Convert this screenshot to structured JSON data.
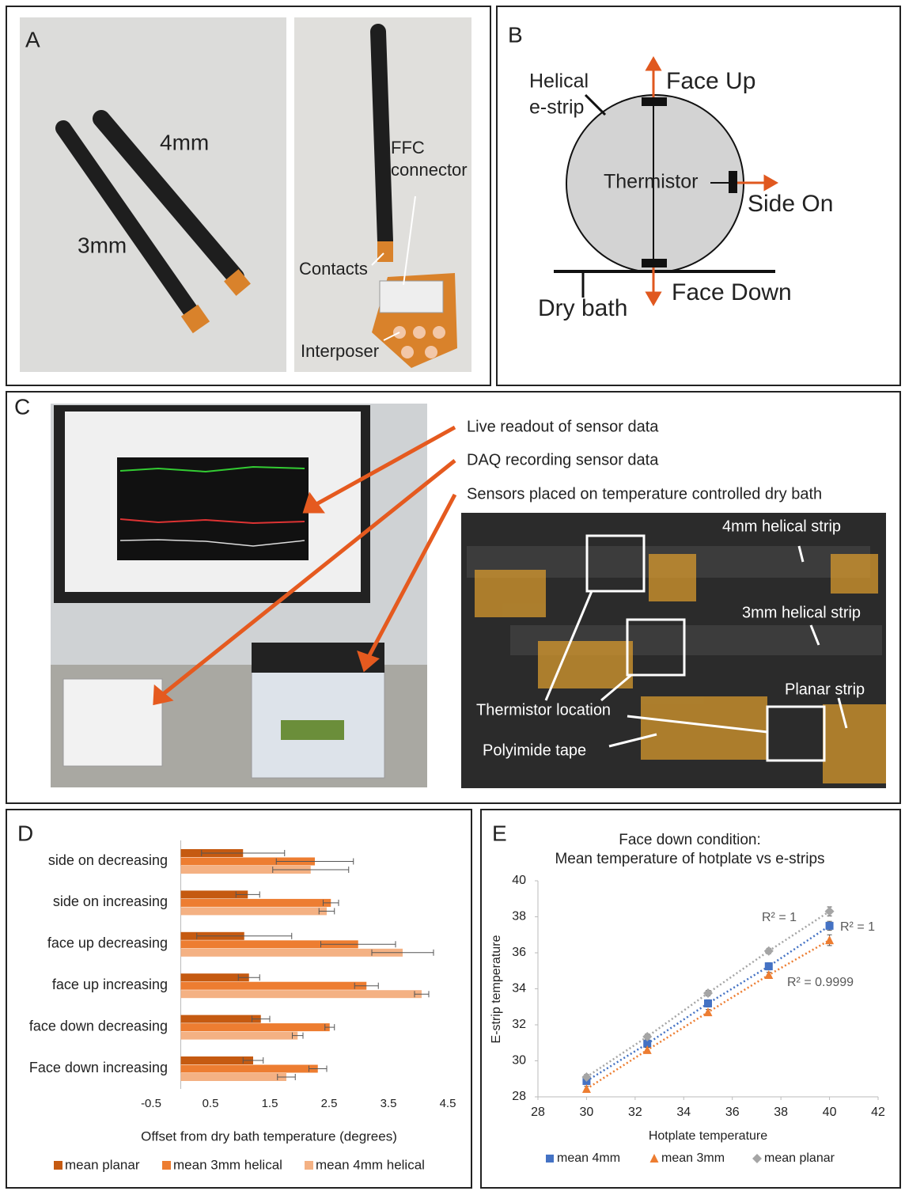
{
  "panel_a": {
    "letter": "A",
    "rod_4mm": "4mm",
    "rod_3mm": "3mm",
    "ffc": [
      "FFC",
      "connector"
    ],
    "contacts": "Contacts",
    "interposer": "Interposer"
  },
  "panel_b": {
    "letter": "B",
    "helical": [
      "Helical",
      "e-strip"
    ],
    "face_up": "Face Up",
    "thermistor": "Thermistor",
    "side_on": "Side On",
    "face_down": "Face Down",
    "dry_bath": "Dry bath"
  },
  "panel_c": {
    "letter": "C",
    "live": "Live readout of sensor data",
    "daq": "DAQ recording sensor data",
    "sensors": "Sensors placed on temperature controlled dry bath",
    "strip_4mm": "4mm helical strip",
    "strip_3mm": "3mm helical strip",
    "planar": "Planar strip",
    "thermistor": "Thermistor location",
    "tape": "Polyimide tape"
  },
  "chart_data": [
    {
      "type": "hbar",
      "panel": "D",
      "x_label": "Offset from dry bath temperature (degrees)",
      "categories": [
        "side on decreasing",
        "side on increasing",
        "face up decreasing",
        "face up increasing",
        "face down decreasing",
        "Face down increasing"
      ],
      "series": [
        {
          "name": "mean planar",
          "color": "#c55a11",
          "values": [
            1.05,
            1.13,
            1.07,
            1.15,
            1.35,
            1.22
          ],
          "errors": [
            0.7,
            0.2,
            0.8,
            0.18,
            0.15,
            0.17
          ]
        },
        {
          "name": "mean 3mm helical",
          "color": "#ed7d31",
          "values": [
            2.26,
            2.53,
            2.99,
            3.13,
            2.51,
            2.31
          ],
          "errors": [
            0.65,
            0.13,
            0.63,
            0.2,
            0.08,
            0.15
          ]
        },
        {
          "name": "mean 4mm helical",
          "color": "#f4b183",
          "values": [
            2.19,
            2.46,
            3.74,
            4.06,
            1.97,
            1.78
          ],
          "errors": [
            0.64,
            0.13,
            0.52,
            0.12,
            0.09,
            0.15
          ]
        }
      ],
      "xlim": [
        -0.5,
        4.5
      ],
      "xticks": [
        -0.5,
        0.5,
        1.5,
        2.5,
        3.5,
        4.5
      ]
    },
    {
      "type": "line",
      "panel": "E",
      "title": [
        "Face down condition:",
        "Mean temperature of hotplate vs e-strips"
      ],
      "x_label": "Hotplate temperature",
      "y_label": "E-strip temperature",
      "x": [
        30,
        32.5,
        35,
        37.5,
        40
      ],
      "series": [
        {
          "name": "mean 4mm",
          "color": "#4472c4",
          "marker": "square",
          "values": [
            28.88,
            30.95,
            33.19,
            35.25,
            37.5
          ],
          "errors": [
            0.2,
            0.2,
            0.2,
            0.2,
            0.25
          ],
          "trend_label": "R² = 1"
        },
        {
          "name": "mean 3mm",
          "color": "#ed7d31",
          "marker": "triangle",
          "values": [
            28.44,
            30.6,
            32.7,
            34.77,
            36.7
          ],
          "errors": [
            0.15,
            0.15,
            0.15,
            0.15,
            0.3
          ],
          "trend_label": "R² = 0.9999"
        },
        {
          "name": "mean planar",
          "color": "#a5a5a5",
          "marker": "diamond",
          "values": [
            29.1,
            31.34,
            33.76,
            36.1,
            38.3
          ],
          "errors": [
            0.15,
            0.15,
            0.15,
            0.15,
            0.25
          ],
          "trend_label": "R² = 1"
        }
      ],
      "xlim": [
        28,
        42
      ],
      "xticks": [
        28,
        30,
        32,
        34,
        36,
        38,
        40,
        42
      ],
      "ylim": [
        28,
        40
      ],
      "yticks": [
        28,
        30,
        32,
        34,
        36,
        38,
        40
      ]
    }
  ]
}
